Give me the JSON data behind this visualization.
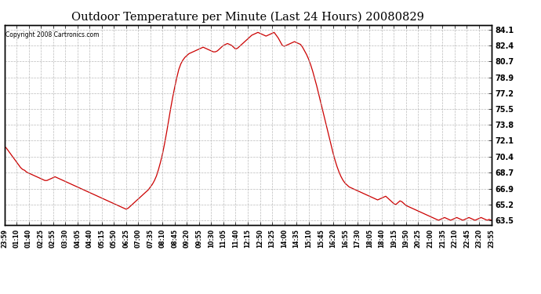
{
  "title": "Outdoor Temperature per Minute (Last 24 Hours) 20080829",
  "copyright": "Copyright 2008 Cartronics.com",
  "background_color": "#ffffff",
  "line_color": "#cc0000",
  "grid_color": "#aaaaaa",
  "yticks": [
    63.5,
    65.2,
    66.9,
    68.7,
    70.4,
    72.1,
    73.8,
    75.5,
    77.2,
    78.9,
    80.7,
    82.4,
    84.1
  ],
  "ylim": [
    63.0,
    84.6
  ],
  "xtick_labels": [
    "23:59",
    "01:10",
    "01:40",
    "02:25",
    "02:55",
    "03:30",
    "04:05",
    "04:40",
    "05:15",
    "05:50",
    "06:25",
    "07:00",
    "07:35",
    "08:10",
    "08:45",
    "09:20",
    "09:55",
    "10:30",
    "11:05",
    "11:40",
    "12:15",
    "12:50",
    "13:25",
    "14:00",
    "14:35",
    "15:10",
    "15:45",
    "16:20",
    "16:55",
    "17:30",
    "18:05",
    "18:40",
    "19:15",
    "19:50",
    "20:25",
    "21:00",
    "21:35",
    "22:10",
    "22:45",
    "23:20",
    "23:55"
  ],
  "temperature_profile": [
    71.5,
    71.3,
    71.0,
    70.7,
    70.4,
    70.1,
    69.8,
    69.5,
    69.2,
    69.0,
    68.9,
    68.7,
    68.6,
    68.5,
    68.4,
    68.3,
    68.2,
    68.1,
    68.0,
    67.9,
    67.8,
    67.8,
    67.9,
    68.0,
    68.1,
    68.2,
    68.1,
    68.0,
    67.9,
    67.8,
    67.7,
    67.6,
    67.5,
    67.4,
    67.3,
    67.2,
    67.1,
    67.0,
    66.9,
    66.8,
    66.7,
    66.6,
    66.5,
    66.4,
    66.3,
    66.2,
    66.1,
    66.0,
    65.9,
    65.8,
    65.7,
    65.6,
    65.5,
    65.4,
    65.3,
    65.2,
    65.1,
    65.0,
    64.9,
    64.8,
    64.7,
    64.8,
    65.0,
    65.2,
    65.4,
    65.6,
    65.8,
    66.0,
    66.2,
    66.4,
    66.6,
    66.8,
    67.1,
    67.4,
    67.8,
    68.3,
    69.0,
    69.8,
    70.7,
    71.8,
    73.0,
    74.3,
    75.6,
    76.8,
    77.9,
    78.9,
    79.8,
    80.4,
    80.8,
    81.1,
    81.3,
    81.5,
    81.6,
    81.7,
    81.8,
    81.9,
    82.0,
    82.1,
    82.2,
    82.1,
    82.0,
    81.9,
    81.8,
    81.7,
    81.7,
    81.8,
    82.0,
    82.2,
    82.4,
    82.5,
    82.6,
    82.5,
    82.4,
    82.2,
    82.0,
    82.1,
    82.3,
    82.5,
    82.7,
    82.9,
    83.1,
    83.3,
    83.5,
    83.6,
    83.7,
    83.8,
    83.7,
    83.6,
    83.5,
    83.4,
    83.5,
    83.6,
    83.7,
    83.8,
    83.5,
    83.2,
    82.8,
    82.4,
    82.3,
    82.4,
    82.5,
    82.6,
    82.7,
    82.8,
    82.7,
    82.6,
    82.5,
    82.2,
    81.8,
    81.4,
    80.9,
    80.3,
    79.6,
    78.8,
    78.0,
    77.1,
    76.2,
    75.3,
    74.4,
    73.5,
    72.6,
    71.7,
    70.8,
    70.0,
    69.3,
    68.7,
    68.2,
    67.8,
    67.5,
    67.3,
    67.1,
    67.0,
    66.9,
    66.8,
    66.7,
    66.6,
    66.5,
    66.4,
    66.3,
    66.2,
    66.1,
    66.0,
    65.9,
    65.8,
    65.7,
    65.8,
    65.9,
    66.0,
    66.1,
    65.9,
    65.7,
    65.5,
    65.3,
    65.2,
    65.4,
    65.6,
    65.5,
    65.3,
    65.1,
    65.0,
    64.9,
    64.8,
    64.7,
    64.6,
    64.5,
    64.4,
    64.3,
    64.2,
    64.1,
    64.0,
    63.9,
    63.8,
    63.7,
    63.6,
    63.5,
    63.6,
    63.7,
    63.8,
    63.7,
    63.6,
    63.5,
    63.6,
    63.7,
    63.8,
    63.7,
    63.6,
    63.5,
    63.6,
    63.7,
    63.8,
    63.7,
    63.6,
    63.5,
    63.6,
    63.7,
    63.8,
    63.7,
    63.6,
    63.5,
    63.6,
    63.5
  ]
}
